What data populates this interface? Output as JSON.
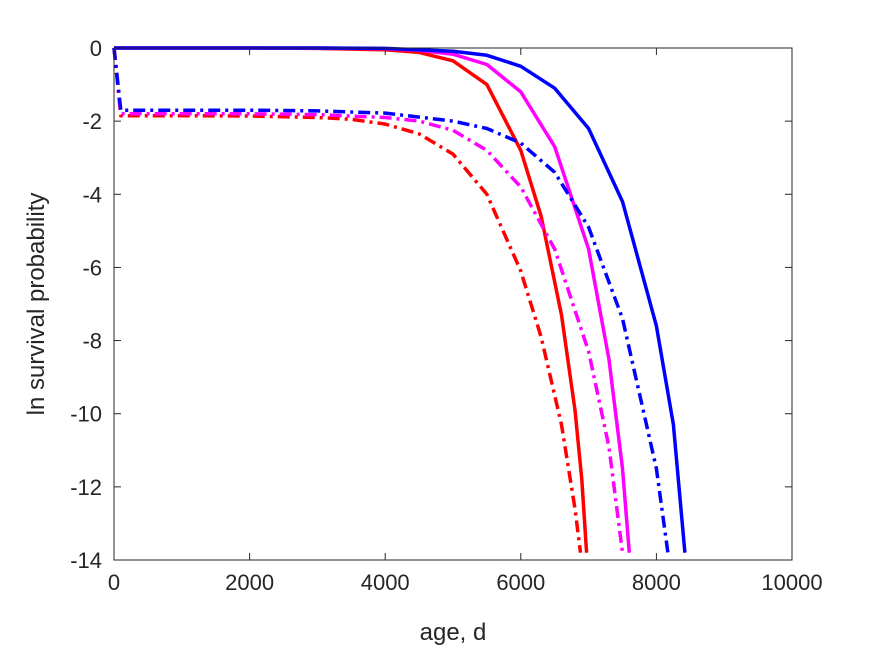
{
  "chart_data": {
    "type": "line",
    "title": "",
    "xlabel": "age, d",
    "ylabel": "ln survival probability",
    "xlim": [
      0,
      10000
    ],
    "ylim": [
      -14,
      0
    ],
    "xticks": [
      0,
      2000,
      4000,
      6000,
      8000,
      10000
    ],
    "yticks": [
      0,
      -2,
      -4,
      -6,
      -8,
      -10,
      -12,
      -14
    ],
    "xtick_labels": [
      "0",
      "2000",
      "4000",
      "6000",
      "8000",
      "10000"
    ],
    "ytick_labels": [
      "0",
      "-2",
      "-4",
      "-6",
      "-8",
      "-10",
      "-12",
      "-14"
    ],
    "grid": false,
    "legend": "none",
    "series": [
      {
        "color": "#ff0000",
        "style": "solid",
        "x": [
          0,
          1000,
          2000,
          3000,
          4000,
          4500,
          5000,
          5500,
          6000,
          6300,
          6600,
          6800,
          6900,
          6970
        ],
        "y": [
          0,
          0,
          0,
          -0.01,
          -0.05,
          -0.12,
          -0.35,
          -1.0,
          -2.8,
          -4.6,
          -7.3,
          -9.9,
          -11.8,
          -13.8
        ]
      },
      {
        "color": "#ff00ff",
        "style": "solid",
        "x": [
          0,
          1000,
          2000,
          3000,
          4000,
          4500,
          5000,
          5500,
          6000,
          6500,
          7000,
          7300,
          7500,
          7600
        ],
        "y": [
          0,
          0,
          0,
          0,
          -0.02,
          -0.06,
          -0.17,
          -0.45,
          -1.2,
          -2.7,
          -5.5,
          -8.5,
          -11.5,
          -13.8
        ]
      },
      {
        "color": "#0000ff",
        "style": "solid",
        "x": [
          0,
          1000,
          2000,
          3000,
          4000,
          5000,
          5500,
          6000,
          6500,
          7000,
          7500,
          8000,
          8250,
          8420
        ],
        "y": [
          0,
          0,
          0,
          0,
          -0.01,
          -0.09,
          -0.2,
          -0.5,
          -1.1,
          -2.2,
          -4.2,
          -7.6,
          -10.3,
          -13.8
        ]
      },
      {
        "color": "#ff0000",
        "style": "dashdot",
        "x": [
          0,
          100,
          1000,
          2000,
          3000,
          3500,
          4000,
          4500,
          5000,
          5500,
          6000,
          6300,
          6600,
          6800,
          6880
        ],
        "y": [
          0,
          -1.85,
          -1.85,
          -1.86,
          -1.9,
          -1.95,
          -2.08,
          -2.35,
          -2.9,
          -4.0,
          -6.1,
          -7.9,
          -10.3,
          -12.6,
          -13.8
        ]
      },
      {
        "color": "#ff00ff",
        "style": "dashdot",
        "x": [
          0,
          100,
          1000,
          2000,
          3000,
          4000,
          4500,
          5000,
          5500,
          6000,
          6500,
          7000,
          7300,
          7500
        ],
        "y": [
          0,
          -1.8,
          -1.8,
          -1.8,
          -1.82,
          -1.9,
          -2.0,
          -2.25,
          -2.8,
          -3.8,
          -5.5,
          -8.3,
          -10.9,
          -13.8
        ]
      },
      {
        "color": "#0000ff",
        "style": "dashdot",
        "x": [
          0,
          100,
          1000,
          2000,
          3000,
          4000,
          5000,
          5500,
          6000,
          6500,
          7000,
          7500,
          8000,
          8170
        ],
        "y": [
          0,
          -1.7,
          -1.7,
          -1.7,
          -1.72,
          -1.78,
          -2.0,
          -2.2,
          -2.6,
          -3.4,
          -4.9,
          -7.4,
          -11.5,
          -13.8
        ]
      }
    ]
  }
}
